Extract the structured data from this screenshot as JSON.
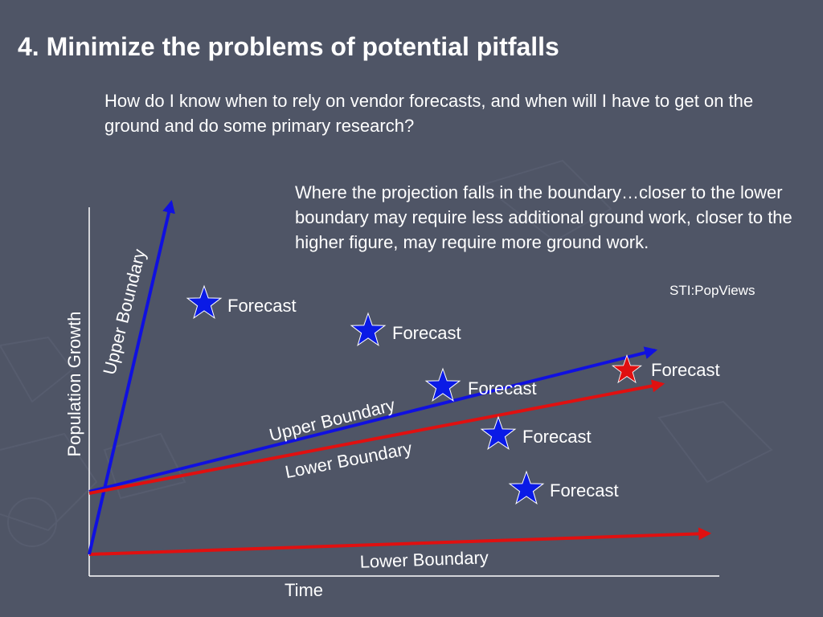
{
  "slide": {
    "title": "4. Minimize the problems of potential pitfalls",
    "question": "How do I know when to rely on vendor forecasts, and when will I have to get on the ground and do some primary research?",
    "explanation": "Where the projection falls in the boundary…closer to the lower boundary may require less additional ground work, closer to the higher figure, may require more ground work.",
    "source": "STI:PopViews"
  },
  "diagram": {
    "y_axis_label": "Population Growth",
    "x_axis_label": "Time",
    "upper_boundary_steep_label": "Upper Boundary",
    "upper_boundary_label": "Upper Boundary",
    "lower_boundary_label": "Lower Boundary",
    "lower_boundary_bottom_label": "Lower Boundary",
    "forecast_label": "Forecast",
    "colors": {
      "upper_line": "#1010e0",
      "lower_line": "#e01010",
      "star_blue": "#0a1ae6",
      "star_red": "#e01010",
      "axis": "#ffffff"
    },
    "forecasts": [
      {
        "label": "Forecast",
        "color": "blue"
      },
      {
        "label": "Forecast",
        "color": "blue"
      },
      {
        "label": "Forecast",
        "color": "blue"
      },
      {
        "label": "Forecast",
        "color": "blue"
      },
      {
        "label": "Forecast",
        "color": "blue"
      },
      {
        "label": "Forecast",
        "color": "red"
      }
    ]
  }
}
